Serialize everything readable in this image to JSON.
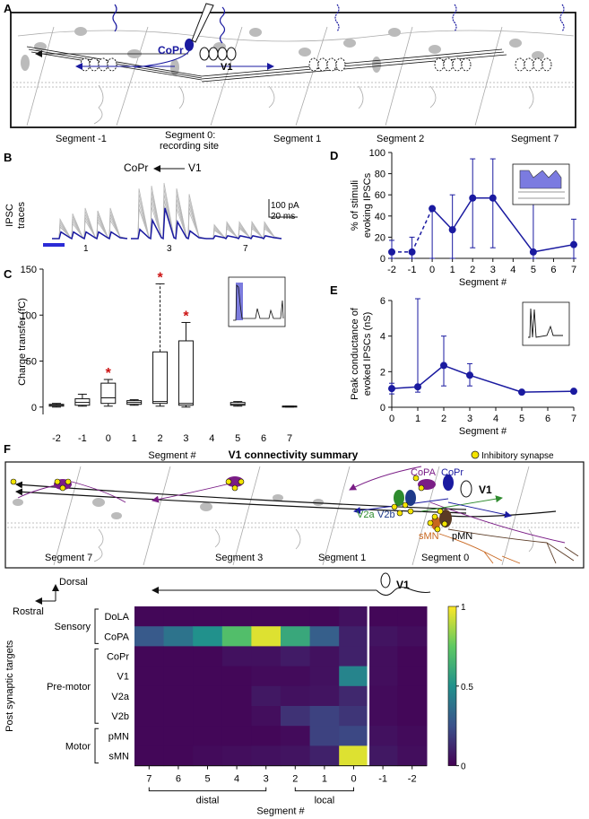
{
  "panels": {
    "A": {
      "letter": "A",
      "labels": {
        "copr": "CoPr",
        "v1": "V1"
      },
      "segments": [
        "Segment -1",
        "Segment 0:",
        "recording site",
        "Segment 1",
        "Segment 2",
        "Segment 7"
      ]
    },
    "B": {
      "letter": "B",
      "direction_label": "CoPr",
      "direction_source": "V1",
      "ylabel_lines": [
        "IPSC",
        "traces"
      ],
      "scale_amp": "100 pA",
      "scale_time": "20 ms",
      "trace_labels": [
        "1",
        "3",
        "7"
      ]
    },
    "F": {
      "letter": "F",
      "title": "V1 connectivity summary",
      "legend": "Inhibitory synapse",
      "cell_labels": {
        "copa": "CoPA",
        "copr": "CoPr",
        "v1": "V1",
        "v2a": "V2a",
        "v2b": "V2b",
        "smn": "sMN",
        "pmn": "pMN"
      },
      "segments": [
        "Segment 7",
        "Segment 3",
        "Segment 1",
        "Segment 0"
      ],
      "axis_dorsal": "Dorsal",
      "axis_rostral": "Rostral",
      "v1_label": "V1"
    }
  },
  "colors": {
    "accent": "#1a1aa0",
    "purple": "#7a1d86",
    "green": "#2e8b2e",
    "orange": "#c8661e",
    "brown": "#5a3a24",
    "red_star": "#cc1111",
    "yellow_synapse": "#f4e400"
  },
  "chart_data": [
    {
      "panel": "C",
      "type": "box",
      "xlabel": "Segment #",
      "ylabel": "Charge transfer (fC)",
      "ylim": [
        -8,
        150
      ],
      "yticks": [
        0,
        50,
        100,
        150
      ],
      "xticks": [
        "-2",
        "-1",
        "0",
        "1",
        "2",
        "3",
        "4",
        "5",
        "6",
        "7"
      ],
      "boxes": [
        {
          "segment": -2,
          "min": 0,
          "q1": 1,
          "median": 2,
          "q3": 3,
          "max": 4,
          "significant": false
        },
        {
          "segment": -1,
          "min": 1,
          "q1": 2,
          "median": 5,
          "q3": 9,
          "max": 14,
          "significant": false
        },
        {
          "segment": 0,
          "min": 1,
          "q1": 4,
          "median": 10,
          "q3": 26,
          "max": 30,
          "significant": true
        },
        {
          "segment": 1,
          "min": 2,
          "q1": 3,
          "median": 5,
          "q3": 7,
          "max": 8,
          "significant": false
        },
        {
          "segment": 2,
          "min": 1,
          "q1": 4,
          "median": 6,
          "q3": 60,
          "max": 134,
          "significant": true
        },
        {
          "segment": 3,
          "min": 0,
          "q1": 2,
          "median": 4,
          "q3": 72,
          "max": 92,
          "significant": true
        },
        {
          "segment": 5,
          "min": 1,
          "q1": 2,
          "median": 3,
          "q3": 5,
          "max": 6,
          "significant": false
        },
        {
          "segment": 7,
          "min": 0,
          "q1": 0,
          "median": 1,
          "q3": 1,
          "max": 1,
          "significant": false
        }
      ]
    },
    {
      "panel": "D",
      "type": "line",
      "xlabel": "Segment #",
      "ylabel_lines": [
        "% of stimuli",
        "evoking IPSCs"
      ],
      "ylim": [
        0,
        100
      ],
      "xlim": [
        -2,
        7
      ],
      "yticks": [
        0,
        20,
        40,
        60,
        80,
        100
      ],
      "xticks": [
        -2,
        -1,
        0,
        1,
        2,
        3,
        4,
        5,
        6,
        7
      ],
      "x": [
        -2,
        -1,
        0,
        1,
        2,
        3,
        5,
        7
      ],
      "y": [
        6,
        6,
        47,
        27,
        57,
        57,
        6,
        13
      ],
      "err_low": [
        0,
        0,
        0,
        0,
        10,
        10,
        0,
        0
      ],
      "err_high": [
        17,
        20,
        47,
        60,
        94,
        94,
        67,
        37
      ],
      "dashed_segments": [
        [
          -2,
          -1
        ],
        [
          -1,
          0
        ]
      ]
    },
    {
      "panel": "E",
      "type": "line",
      "xlabel": "Segment #",
      "ylabel_lines": [
        "Peak conductance of",
        "evoked IPSCs (nS)"
      ],
      "ylim": [
        0,
        6
      ],
      "xlim": [
        0,
        7
      ],
      "yticks": [
        0,
        2,
        4,
        6
      ],
      "xticks": [
        0,
        1,
        2,
        3,
        4,
        5,
        6,
        7
      ],
      "x": [
        0,
        1,
        2,
        3,
        5,
        7
      ],
      "y": [
        1.05,
        1.15,
        2.35,
        1.8,
        0.85,
        0.9
      ],
      "err_low": [
        0.75,
        0.85,
        1.2,
        1.2,
        0.85,
        0.9
      ],
      "err_high": [
        1.35,
        6.1,
        4.0,
        2.45,
        0.85,
        0.9
      ]
    },
    {
      "panel": "F",
      "type": "heatmap",
      "xlabel": "Segment #",
      "ylabel": "Post synaptic targets",
      "columns": [
        "7",
        "6",
        "5",
        "4",
        "3",
        "2",
        "1",
        "0",
        "-1",
        "-2"
      ],
      "rows": [
        "DoLA",
        "CoPA",
        "CoPr",
        "V1",
        "V2a",
        "V2b",
        "pMN",
        "sMN"
      ],
      "row_groups": [
        {
          "name": "Sensory",
          "rows": [
            "DoLA",
            "CoPA"
          ]
        },
        {
          "name": "Pre-motor",
          "rows": [
            "CoPr",
            "V1",
            "V2a",
            "V2b"
          ]
        },
        {
          "name": "Motor",
          "rows": [
            "pMN",
            "sMN"
          ]
        }
      ],
      "column_groups": [
        {
          "name": "distal",
          "columns": [
            "7",
            "6",
            "5",
            "4",
            "3"
          ]
        },
        {
          "name": "local",
          "columns": [
            "2",
            "1",
            "0"
          ]
        }
      ],
      "colorbar": {
        "min": 0,
        "max": 1,
        "ticks": [
          0,
          0.5,
          1
        ]
      },
      "values": [
        [
          0.02,
          0.02,
          0.02,
          0.02,
          0.02,
          0.02,
          0.02,
          0.05,
          0.02,
          0.02
        ],
        [
          0.28,
          0.38,
          0.5,
          0.7,
          0.95,
          0.6,
          0.3,
          0.1,
          0.06,
          0.04
        ],
        [
          0.02,
          0.02,
          0.02,
          0.05,
          0.05,
          0.08,
          0.05,
          0.1,
          0.04,
          0.02
        ],
        [
          0.02,
          0.02,
          0.02,
          0.02,
          0.03,
          0.03,
          0.05,
          0.45,
          0.04,
          0.02
        ],
        [
          0.02,
          0.02,
          0.02,
          0.02,
          0.07,
          0.05,
          0.06,
          0.12,
          0.03,
          0.02
        ],
        [
          0.02,
          0.02,
          0.02,
          0.02,
          0.04,
          0.15,
          0.2,
          0.16,
          0.03,
          0.02
        ],
        [
          0.02,
          0.02,
          0.02,
          0.02,
          0.02,
          0.03,
          0.2,
          0.22,
          0.05,
          0.03
        ],
        [
          0.02,
          0.02,
          0.03,
          0.04,
          0.05,
          0.06,
          0.1,
          0.95,
          0.07,
          0.04
        ]
      ]
    }
  ]
}
